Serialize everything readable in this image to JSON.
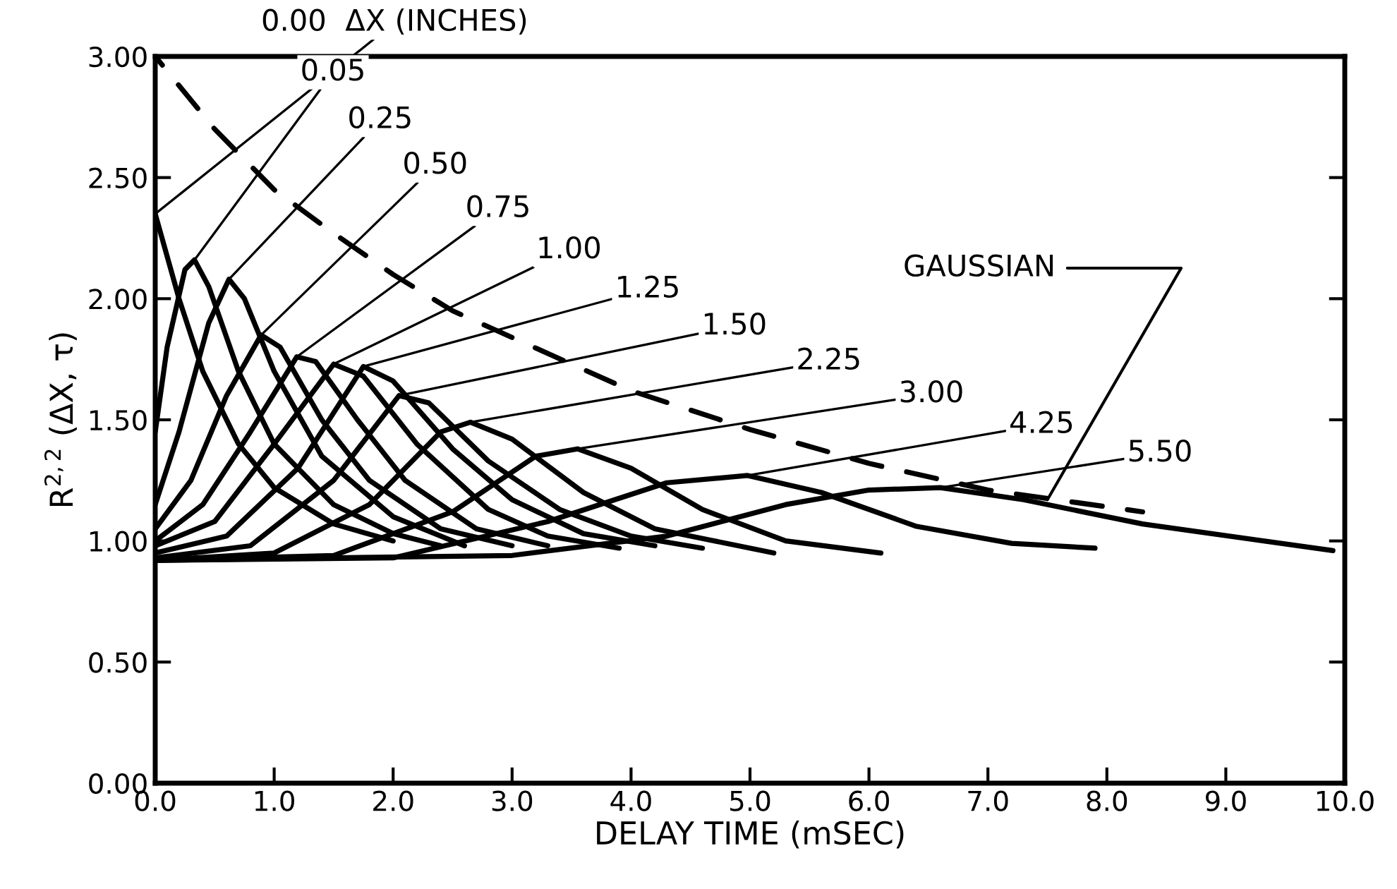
{
  "chart_data": {
    "type": "line",
    "xlabel": "DELAY TIME (mSEC)",
    "ylabel": "R$^{2,2}$ (ΔX, τ)",
    "legend_title": "ΔX (INCHES)",
    "xlim": [
      0,
      10
    ],
    "ylim": [
      0,
      3
    ],
    "xticks": [
      {
        "value": 0,
        "label": "0.0"
      },
      {
        "value": 1,
        "label": "1.0"
      },
      {
        "value": 2,
        "label": "2.0"
      },
      {
        "value": 3,
        "label": "3.0"
      },
      {
        "value": 4,
        "label": "4.0"
      },
      {
        "value": 5,
        "label": "5.0"
      },
      {
        "value": 6,
        "label": "6.0"
      },
      {
        "value": 7,
        "label": "7.0"
      },
      {
        "value": 8,
        "label": "8.0"
      },
      {
        "value": 9,
        "label": "9.0"
      },
      {
        "value": 10,
        "label": "10.0"
      }
    ],
    "yticks": [
      {
        "value": 0,
        "label": "0.00"
      },
      {
        "value": 0.5,
        "label": "0.50"
      },
      {
        "value": 1,
        "label": "1.00"
      },
      {
        "value": 1.5,
        "label": "1.50"
      },
      {
        "value": 2,
        "label": "2.00"
      },
      {
        "value": 2.5,
        "label": "2.50"
      },
      {
        "value": 3,
        "label": "3.00"
      }
    ],
    "grid": false,
    "line_style": "solid",
    "marker": "none",
    "series": [
      {
        "name": "0.00",
        "color": "#000000",
        "x": [
          0,
          0.2,
          0.4,
          0.7,
          1.0,
          1.5,
          2.0
        ],
        "values": [
          2.35,
          2.0,
          1.7,
          1.4,
          1.22,
          1.07,
          1.0
        ]
      },
      {
        "name": "0.05",
        "color": "#000000",
        "x": [
          0,
          0.1,
          0.25,
          0.33,
          0.45,
          0.7,
          1.0,
          1.5,
          2.0,
          2.4
        ],
        "values": [
          1.45,
          1.8,
          2.12,
          2.16,
          2.05,
          1.7,
          1.4,
          1.15,
          1.03,
          0.98
        ]
      },
      {
        "name": "0.25",
        "color": "#000000",
        "x": [
          0,
          0.2,
          0.45,
          0.62,
          0.75,
          1.0,
          1.4,
          2.0,
          2.6
        ],
        "values": [
          1.15,
          1.45,
          1.9,
          2.08,
          2.0,
          1.7,
          1.35,
          1.1,
          0.98
        ]
      },
      {
        "name": "0.50",
        "color": "#000000",
        "x": [
          0,
          0.3,
          0.6,
          0.89,
          1.05,
          1.4,
          1.8,
          2.4,
          3.0
        ],
        "values": [
          1.05,
          1.25,
          1.6,
          1.85,
          1.8,
          1.5,
          1.25,
          1.05,
          0.98
        ]
      },
      {
        "name": "0.75",
        "color": "#000000",
        "x": [
          0,
          0.4,
          0.8,
          1.19,
          1.35,
          1.7,
          2.1,
          2.7,
          3.3
        ],
        "values": [
          1.0,
          1.15,
          1.45,
          1.76,
          1.74,
          1.5,
          1.25,
          1.05,
          0.98
        ]
      },
      {
        "name": "1.00",
        "color": "#000000",
        "x": [
          0,
          0.5,
          1.0,
          1.5,
          1.75,
          2.2,
          2.8,
          3.3,
          3.9
        ],
        "values": [
          0.98,
          1.08,
          1.4,
          1.73,
          1.68,
          1.4,
          1.13,
          1.02,
          0.97
        ]
      },
      {
        "name": "1.25",
        "color": "#000000",
        "x": [
          0,
          0.6,
          1.2,
          1.75,
          2.0,
          2.5,
          3.0,
          3.6,
          4.2
        ],
        "values": [
          0.95,
          1.02,
          1.3,
          1.72,
          1.66,
          1.38,
          1.17,
          1.03,
          0.98
        ]
      },
      {
        "name": "1.50",
        "color": "#000000",
        "x": [
          0,
          0.8,
          1.5,
          2.05,
          2.3,
          2.8,
          3.4,
          4.0,
          4.6
        ],
        "values": [
          0.93,
          0.98,
          1.25,
          1.6,
          1.57,
          1.33,
          1.13,
          1.02,
          0.97
        ]
      },
      {
        "name": "2.25",
        "color": "#000000",
        "x": [
          0,
          1.0,
          1.8,
          2.4,
          2.65,
          3.0,
          3.6,
          4.2,
          5.2
        ],
        "values": [
          0.92,
          0.95,
          1.15,
          1.45,
          1.49,
          1.42,
          1.2,
          1.05,
          0.95
        ]
      },
      {
        "name": "3.00",
        "color": "#000000",
        "x": [
          0,
          1.5,
          2.5,
          3.2,
          3.55,
          4.0,
          4.6,
          5.3,
          6.1
        ],
        "values": [
          0.92,
          0.94,
          1.12,
          1.35,
          1.38,
          1.3,
          1.13,
          1.0,
          0.95
        ]
      },
      {
        "name": "4.25",
        "color": "#000000",
        "x": [
          0,
          2.0,
          3.3,
          4.3,
          4.98,
          5.6,
          6.4,
          7.2,
          7.9
        ],
        "values": [
          0.92,
          0.93,
          1.08,
          1.24,
          1.27,
          1.2,
          1.06,
          0.99,
          0.97
        ]
      },
      {
        "name": "5.50",
        "color": "#000000",
        "x": [
          0,
          3.0,
          4.3,
          5.3,
          6.0,
          6.6,
          7.3,
          8.3,
          9.9
        ],
        "values": [
          0.92,
          0.94,
          1.02,
          1.15,
          1.21,
          1.22,
          1.17,
          1.07,
          0.96
        ]
      },
      {
        "color": "#000000",
        "line_style": "dashed",
        "x": [
          0,
          0.5,
          1.0,
          1.5,
          2.0,
          2.5,
          3.0,
          4.0,
          5.0,
          6.0,
          7.0,
          8.3
        ],
        "values": [
          3.0,
          2.7,
          2.45,
          2.27,
          2.1,
          1.95,
          1.84,
          1.62,
          1.46,
          1.32,
          1.21,
          1.12
        ]
      }
    ],
    "annotations": [
      {
        "text": "GAUSSIAN",
        "x": 7.5,
        "y": 1.17
      }
    ]
  }
}
